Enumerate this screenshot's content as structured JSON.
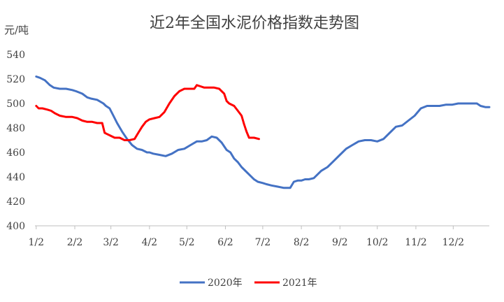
{
  "chart_data": {
    "type": "line",
    "title": "近2年全国水泥价格指数走势图",
    "ylabel": "元/吨",
    "xlabel": "",
    "ylim": [
      400,
      540
    ],
    "yticks": [
      400,
      420,
      440,
      460,
      480,
      500,
      520,
      540
    ],
    "xlim": [
      0,
      365
    ],
    "categories": [
      "1/2",
      "2/2",
      "3/2",
      "4/2",
      "5/2",
      "6/2",
      "7/2",
      "8/2",
      "9/2",
      "10/2",
      "11/2",
      "12/2"
    ],
    "category_positions": [
      1,
      32,
      61,
      92,
      122,
      153,
      183,
      214,
      245,
      275,
      306,
      336
    ],
    "grid": false,
    "legend_position": "bottom",
    "series": [
      {
        "name": "2020年",
        "color": "#4472C4",
        "x": [
          1,
          4,
          8,
          12,
          15,
          20,
          25,
          30,
          33,
          38,
          42,
          45,
          50,
          55,
          57,
          60,
          63,
          66,
          70,
          74,
          78,
          82,
          86,
          90,
          92,
          95,
          100,
          105,
          110,
          115,
          120,
          125,
          130,
          134,
          138,
          142,
          146,
          150,
          154,
          157,
          160,
          163,
          166,
          170,
          173,
          176,
          179,
          183,
          186,
          190,
          195,
          200,
          205,
          208,
          211,
          214,
          217,
          220,
          224,
          230,
          235,
          240,
          245,
          250,
          255,
          260,
          265,
          270,
          275,
          280,
          285,
          290,
          295,
          300,
          305,
          310,
          315,
          320,
          325,
          330,
          335,
          340,
          345,
          350,
          355,
          358,
          362,
          365
        ],
        "y": [
          522,
          521,
          519,
          515,
          513,
          512,
          512,
          511,
          510,
          508,
          505,
          504,
          503,
          500,
          498,
          496,
          490,
          484,
          477,
          471,
          466,
          463,
          462,
          460,
          460,
          459,
          458,
          457,
          459,
          462,
          463,
          466,
          469,
          469,
          470,
          473,
          472,
          468,
          462,
          460,
          455,
          452,
          448,
          444,
          441,
          438,
          436,
          435,
          434,
          433,
          432,
          431,
          431,
          436,
          437,
          437,
          438,
          438,
          439,
          445,
          448,
          453,
          458,
          463,
          466,
          469,
          470,
          470,
          469,
          471,
          476,
          481,
          482,
          486,
          490,
          496,
          498,
          498,
          498,
          499,
          499,
          500,
          500,
          500,
          500,
          498,
          497,
          497
        ]
      },
      {
        "name": "2021年",
        "color": "#FF0000",
        "x": [
          1,
          3,
          6,
          10,
          13,
          16,
          20,
          25,
          30,
          34,
          38,
          42,
          46,
          50,
          54,
          56,
          58,
          60,
          64,
          68,
          72,
          76,
          80,
          83,
          86,
          89,
          92,
          96,
          100,
          104,
          108,
          112,
          116,
          120,
          124,
          128,
          130,
          133,
          136,
          140,
          144,
          148,
          152,
          154,
          156,
          160,
          163,
          166,
          168,
          170,
          172,
          176,
          180
        ],
        "y": [
          498,
          496,
          496,
          495,
          494,
          492,
          490,
          489,
          489,
          488,
          486,
          485,
          485,
          484,
          484,
          476,
          475,
          474,
          472,
          472,
          470,
          470,
          471,
          476,
          481,
          485,
          487,
          488,
          489,
          493,
          500,
          506,
          510,
          512,
          512,
          512,
          515,
          514,
          513,
          513,
          513,
          512,
          508,
          502,
          500,
          498,
          494,
          490,
          483,
          477,
          472,
          472,
          471
        ]
      }
    ]
  }
}
